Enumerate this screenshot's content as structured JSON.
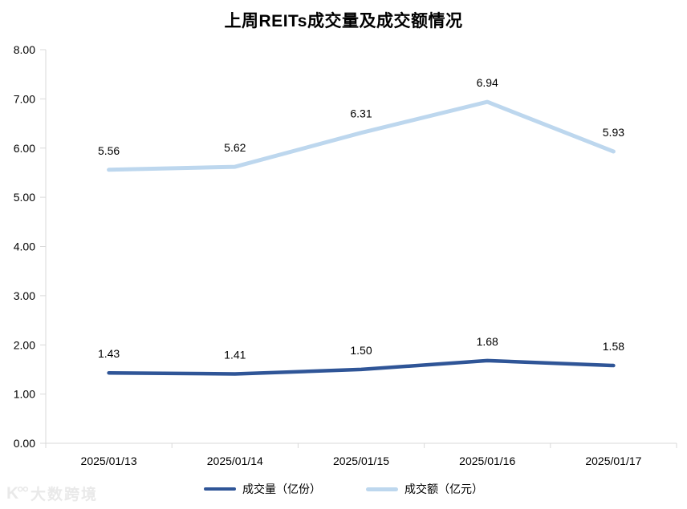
{
  "title": "上周REITs成交量及成交额情况",
  "chart_data": {
    "type": "line",
    "title": "上周REITs成交量及成交额情况",
    "categories": [
      "2025/01/13",
      "2025/01/14",
      "2025/01/15",
      "2025/01/16",
      "2025/01/17"
    ],
    "series": [
      {
        "name": "成交量（亿份）",
        "values": [
          1.43,
          1.41,
          1.5,
          1.68,
          1.58
        ],
        "color": "#2F5597",
        "stroke_width": 4.5
      },
      {
        "name": "成交额（亿元）",
        "values": [
          5.56,
          5.62,
          6.31,
          6.94,
          5.93
        ],
        "color": "#BDD7EE",
        "stroke_width": 5
      }
    ],
    "ylim": [
      0,
      8
    ],
    "y_tick_step": 1,
    "y_tick_decimals": 2,
    "grid": false,
    "data_labels": true,
    "legend_position": "bottom",
    "axis_color": "#D9D9D9",
    "label_color": "#000000"
  },
  "watermark": {
    "logo": "K°°",
    "text": "大数跨境"
  }
}
